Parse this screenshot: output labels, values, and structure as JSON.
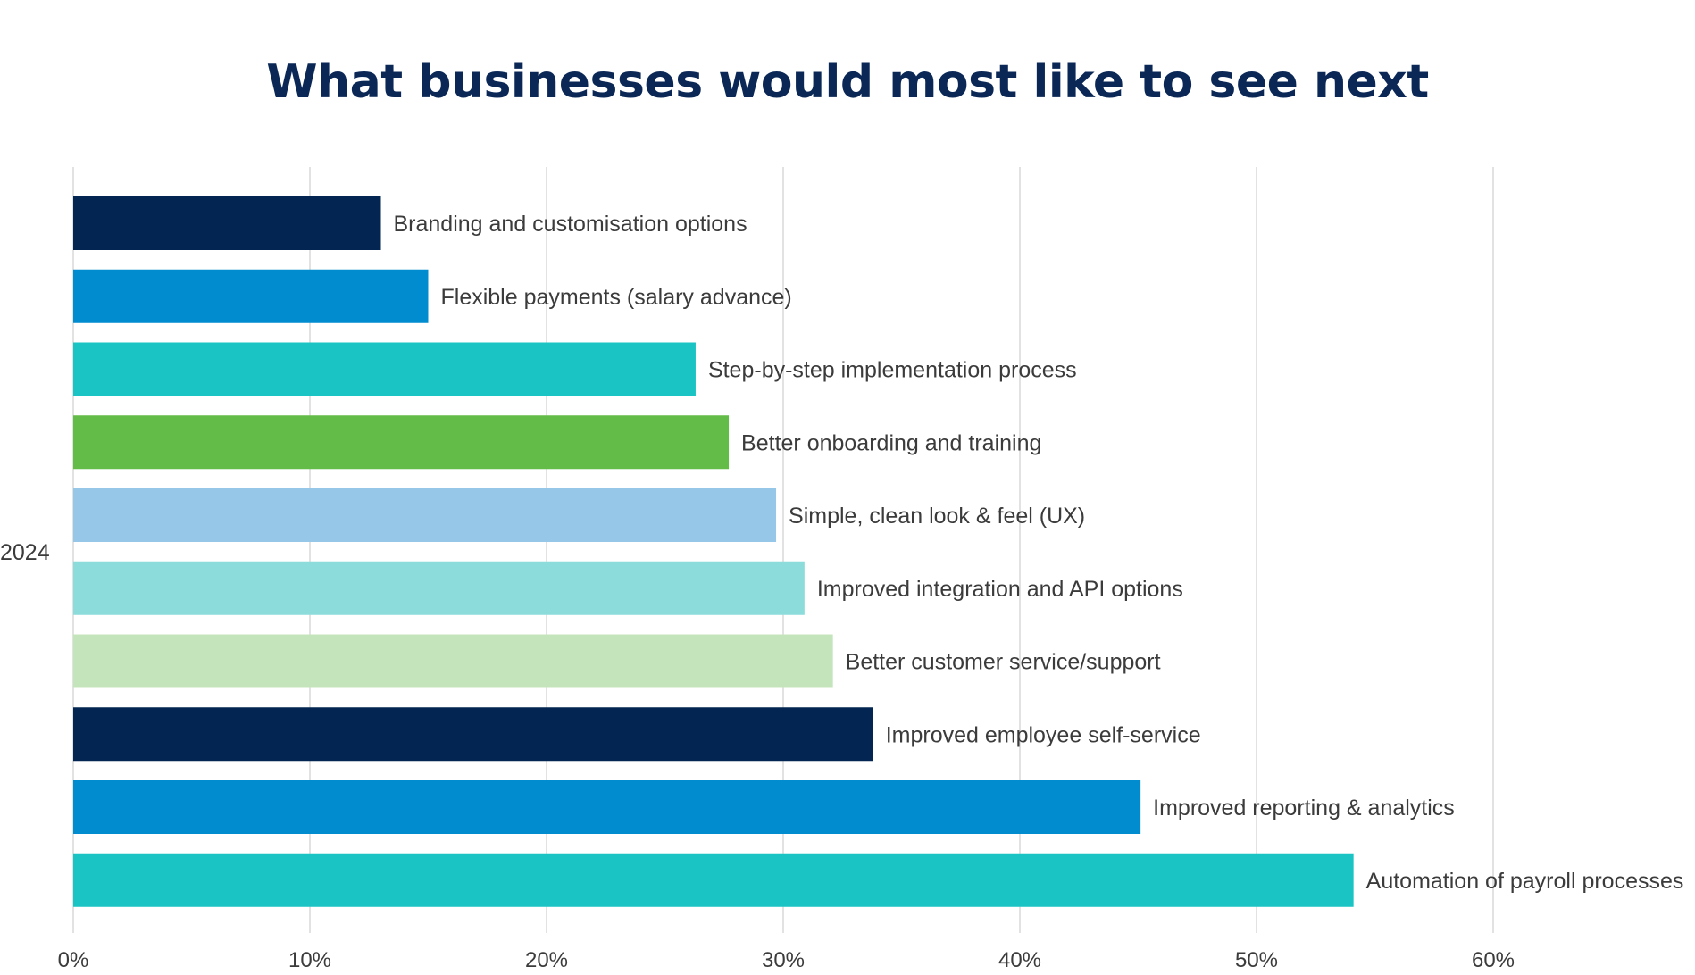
{
  "chart_data": {
    "type": "bar",
    "orientation": "horizontal",
    "title": "What businesses would most like to see next",
    "category_label": "2024",
    "xlim": [
      0,
      60
    ],
    "x_ticks": [
      "0%",
      "10%",
      "20%",
      "30%",
      "40%",
      "50%",
      "60%"
    ],
    "grid": true,
    "legend": "none",
    "unit": "%",
    "bars": [
      {
        "label": "Branding and customisation options",
        "value": 13,
        "color": "#022552"
      },
      {
        "label": "Flexible payments (salary advance)",
        "value": 15,
        "color": "#008ccf"
      },
      {
        "label": "Step-by-step implementation process",
        "value": 26.3,
        "color": "#1ac4c4"
      },
      {
        "label": "Better onboarding and training",
        "value": 27.7,
        "color": "#63bc47"
      },
      {
        "label": "Simple, clean look & feel (UX)",
        "value": 29.7,
        "color": "#96c7e9"
      },
      {
        "label": "Improved integration and API options",
        "value": 30.9,
        "color": "#8cdcdc"
      },
      {
        "label": "Better customer service/support",
        "value": 32.1,
        "color": "#c4e5bb"
      },
      {
        "label": "Improved employee self-service",
        "value": 33.8,
        "color": "#022552"
      },
      {
        "label": "Improved reporting & analytics",
        "value": 45.1,
        "color": "#008ccf"
      },
      {
        "label": "Automation of payroll processes",
        "value": 54.1,
        "color": "#1ac4c4"
      }
    ]
  }
}
